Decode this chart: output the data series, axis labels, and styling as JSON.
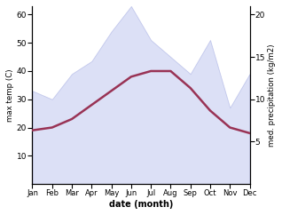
{
  "months": [
    1,
    2,
    3,
    4,
    5,
    6,
    7,
    8,
    9,
    10,
    11,
    12
  ],
  "month_labels": [
    "Jan",
    "Feb",
    "Mar",
    "Apr",
    "May",
    "Jun",
    "Jul",
    "Aug",
    "Sep",
    "Oct",
    "Nov",
    "Dec"
  ],
  "temperature": [
    19,
    20,
    23,
    28,
    33,
    38,
    40,
    40,
    34,
    26,
    20,
    18
  ],
  "precipitation": [
    11,
    10,
    13,
    14.5,
    18,
    21,
    17,
    15,
    13,
    17,
    9,
    13
  ],
  "temp_color": "#993355",
  "precip_fill_color": "#c0c8f0",
  "precip_edge_color": "#a0a8e0",
  "temp_ylim": [
    0,
    63
  ],
  "precip_ylim": [
    0,
    21
  ],
  "temp_yticks": [
    10,
    20,
    30,
    40,
    50,
    60
  ],
  "precip_yticks": [
    5,
    10,
    15,
    20
  ],
  "ylabel_left": "max temp (C)",
  "ylabel_right": "med. precipitation (kg/m2)",
  "xlabel": "date (month)",
  "background_color": "#ffffff",
  "fig_width": 3.18,
  "fig_height": 2.42
}
